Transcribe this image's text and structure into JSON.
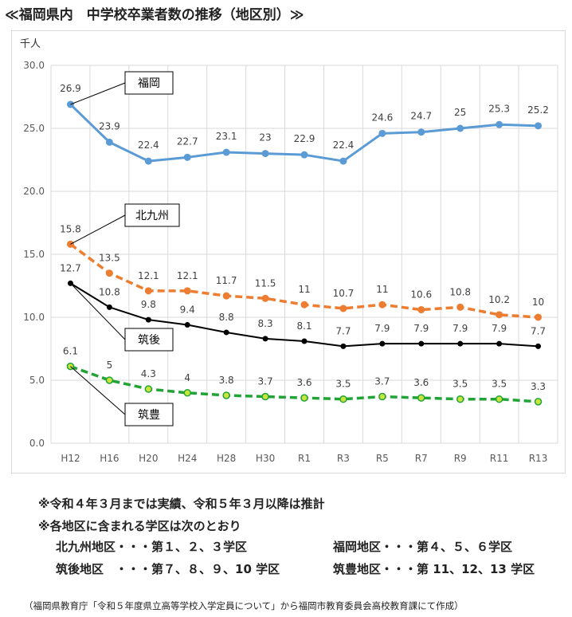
{
  "header": {
    "title": "≪福岡県内　中学校卒業者数の推移（地区別）≫"
  },
  "chart_data": {
    "type": "line",
    "ylabel": "千人",
    "ylim": [
      0,
      30
    ],
    "yticks": [
      "0.0",
      "5.0",
      "10.0",
      "15.0",
      "20.0",
      "25.0",
      "30.0"
    ],
    "grid": true,
    "categories": [
      "H12",
      "H16",
      "H20",
      "H24",
      "H28",
      "H30",
      "R1",
      "R3",
      "R5",
      "R7",
      "R9",
      "R11",
      "R13"
    ],
    "series": [
      {
        "name": "福岡",
        "color": "#5b9bd5",
        "style": "solid",
        "values": [
          26.9,
          23.9,
          22.4,
          22.7,
          23.1,
          23,
          22.9,
          22.4,
          24.6,
          24.7,
          25,
          25.3,
          25.2
        ],
        "labels": [
          "26.9",
          "23.9",
          "22.4",
          "22.7",
          "23.1",
          "23",
          "22.9",
          "22.4",
          "24.6",
          "24.7",
          "25",
          "25.3",
          "25.2"
        ]
      },
      {
        "name": "北九州",
        "color": "#ed7d31",
        "style": "dashed",
        "values": [
          15.8,
          13.5,
          12.1,
          12.1,
          11.7,
          11.5,
          11,
          10.7,
          11,
          10.6,
          10.8,
          10.2,
          10
        ],
        "labels": [
          "15.8",
          "13.5",
          "12.1",
          "12.1",
          "11.7",
          "11.5",
          "11",
          "10.7",
          "11",
          "10.6",
          "10.8",
          "10.2",
          "10"
        ]
      },
      {
        "name": "筑後",
        "color": "#000000",
        "style": "solid",
        "values": [
          12.7,
          10.8,
          9.8,
          9.4,
          8.8,
          8.3,
          8.1,
          7.7,
          7.9,
          7.9,
          7.9,
          7.9,
          7.7
        ],
        "labels": [
          "12.7",
          "10.8",
          "9.8",
          "9.4",
          "8.8",
          "8.3",
          "8.1",
          "7.7",
          "7.9",
          "7.9",
          "7.9",
          "7.9",
          "7.7"
        ]
      },
      {
        "name": "筑豊",
        "color": "#21a336",
        "style": "dashed",
        "values": [
          6.1,
          5,
          4.3,
          4,
          3.8,
          3.7,
          3.6,
          3.5,
          3.7,
          3.6,
          3.5,
          3.5,
          3.3
        ],
        "labels": [
          "6.1",
          "5",
          "4.3",
          "4",
          "3.8",
          "3.7",
          "3.6",
          "3.5",
          "3.7",
          "3.6",
          "3.5",
          "3.5",
          "3.3"
        ]
      }
    ]
  },
  "notes": {
    "line1": "※令和４年３月までは実績、令和５年３月以降は推計",
    "line2": "※各地区に含まれる学区は次のとおり"
  },
  "districts": [
    {
      "left": "北九州地区・・・第１、２、３学区",
      "right": "福岡地区・・・第４、５、６学区"
    },
    {
      "left": "筑後地区　・・・第７、８、９、10 学区",
      "right": "筑豊地区・・・第 11、12、13 学区"
    }
  ],
  "source": "（福岡県教育庁「令和５年度県立高等学校入学定員について」から福岡市教育委員会高校教育課にて作成）"
}
